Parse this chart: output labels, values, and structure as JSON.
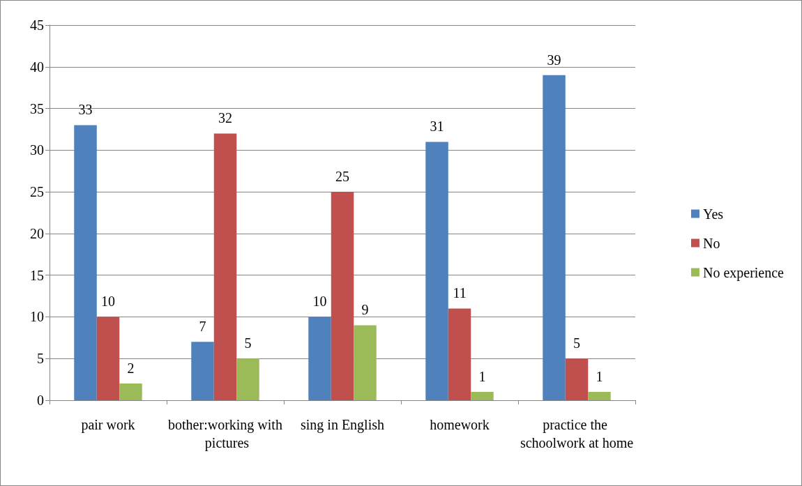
{
  "chart_data": {
    "type": "bar",
    "categories": [
      "pair work",
      "bother:working with pictures",
      "sing in English",
      "homework",
      "practice the schoolwork at home"
    ],
    "series": [
      {
        "name": "Yes",
        "color": "#4f81bd",
        "values": [
          33,
          7,
          10,
          31,
          39
        ]
      },
      {
        "name": "No",
        "color": "#c0504d",
        "values": [
          10,
          32,
          25,
          11,
          5
        ]
      },
      {
        "name": "No experience",
        "color": "#9bbb59",
        "values": [
          2,
          5,
          9,
          1,
          1
        ]
      }
    ],
    "ylim": [
      0,
      45
    ],
    "yticks": [
      0,
      5,
      10,
      15,
      20,
      25,
      30,
      35,
      40,
      45
    ],
    "grid": "y",
    "legend": "right",
    "data_labels": true
  }
}
